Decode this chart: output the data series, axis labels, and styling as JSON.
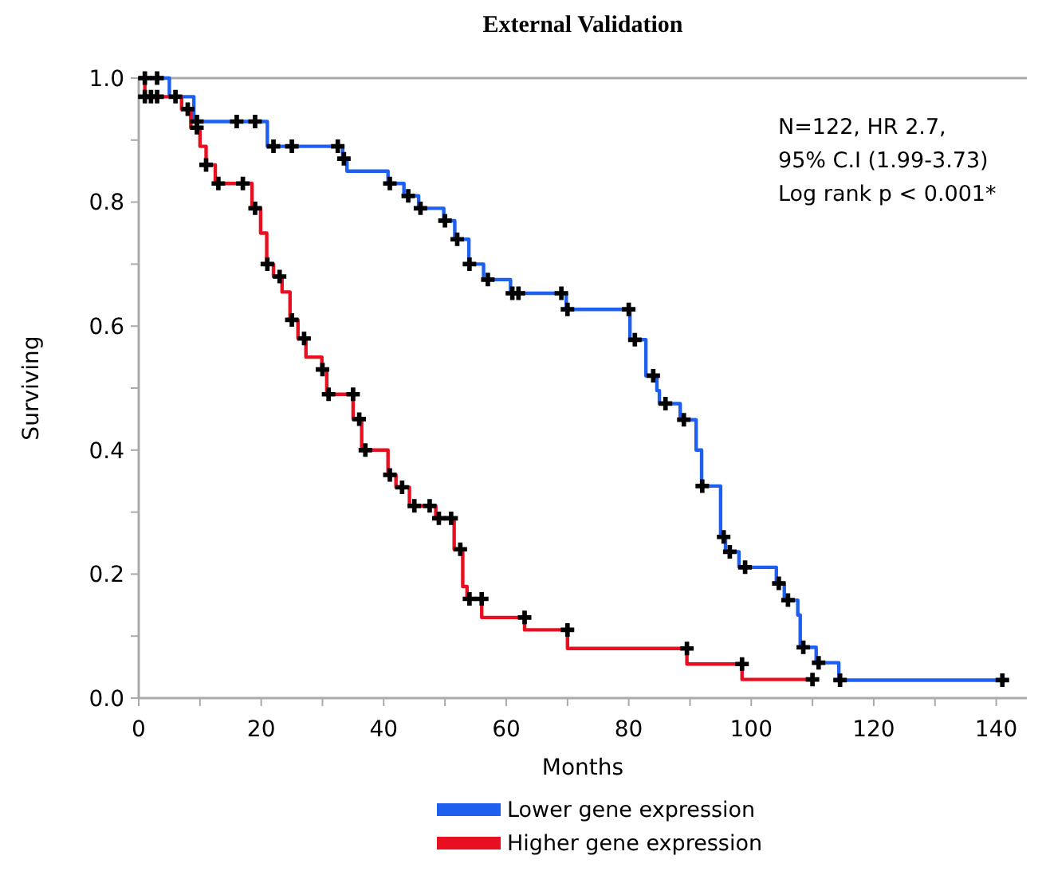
{
  "chart_data": {
    "type": "step",
    "title": "External Validation",
    "xlabel": "Months",
    "ylabel": "Surviving",
    "annotations": [
      "N=122, HR 2.7,",
      "95% C.I (1.99-3.73)",
      "Log rank p < 0.001*"
    ],
    "xlim": [
      0,
      145
    ],
    "ylim": [
      0,
      1
    ],
    "xticks": [
      0,
      {
        "value": 10,
        "label": null
      },
      20,
      {
        "value": 30,
        "label": null
      },
      40,
      {
        "value": 50,
        "label": null
      },
      60,
      {
        "value": 70,
        "label": null
      },
      80,
      {
        "value": 90,
        "label": null
      },
      100,
      {
        "value": 110,
        "label": null
      },
      120,
      {
        "value": 130,
        "label": null
      },
      140
    ],
    "yticks": [
      {
        "value": 0,
        "label": "0.0"
      },
      {
        "value": 0.1,
        "label": null
      },
      0.2,
      {
        "value": 0.3,
        "label": null
      },
      0.4,
      {
        "value": 0.5,
        "label": null
      },
      0.6,
      {
        "value": 0.7,
        "label": null
      },
      0.8,
      {
        "value": 0.9,
        "label": null
      },
      {
        "value": 1,
        "label": "1.0"
      }
    ],
    "grid": false,
    "legend": "bottom",
    "line_style": "solid",
    "series": [
      {
        "name": "Lower gene expression",
        "color": "#1f5ff0",
        "x": [
          0,
          5,
          9,
          21,
          33.3,
          34,
          40.7,
          43.3,
          45.7,
          49.8,
          51.6,
          53.9,
          56.3,
          60.7,
          69.8,
          80.2,
          82.8,
          84.6,
          85,
          88.4,
          91,
          91.9,
          95,
          95.8,
          98,
          104.1,
          105.4,
          107.6,
          108,
          110.6,
          114.3,
          141
        ],
        "values": [
          1,
          0.97,
          0.93,
          0.89,
          0.87,
          0.85,
          0.83,
          0.81,
          0.79,
          0.77,
          0.74,
          0.7,
          0.675,
          0.653,
          0.627,
          0.578,
          0.52,
          0.496,
          0.475,
          0.449,
          0.4,
          0.342,
          0.26,
          0.236,
          0.211,
          0.185,
          0.158,
          0.134,
          0.082,
          0.057,
          0.029,
          0.029
        ]
      },
      {
        "name": "Higher gene expression",
        "color": "#e81020",
        "x": [
          0,
          1,
          7,
          8.5,
          10,
          11,
          12.5,
          18.5,
          19.9,
          20.9,
          22,
          23.4,
          24.7,
          26,
          27.3,
          29.9,
          30.7,
          35,
          36.4,
          40.7,
          42,
          44.2,
          48.5,
          51.5,
          52.9,
          53.6,
          56,
          63,
          70,
          89.5,
          98.5,
          110
        ],
        "values": [
          1,
          0.97,
          0.95,
          0.92,
          0.89,
          0.86,
          0.83,
          0.79,
          0.75,
          0.7,
          0.68,
          0.655,
          0.61,
          0.58,
          0.55,
          0.53,
          0.49,
          0.45,
          0.4,
          0.36,
          0.34,
          0.31,
          0.29,
          0.24,
          0.18,
          0.16,
          0.13,
          0.11,
          0.08,
          0.055,
          0.03,
          0.03
        ]
      },
      {
        "type": "scatter",
        "color": "#000000",
        "marker": "cross",
        "x": [
          1,
          3,
          6,
          9.5,
          16,
          19,
          22,
          25,
          32.5,
          33.5,
          41,
          44,
          46,
          50,
          52,
          54,
          57,
          61,
          62,
          69,
          70,
          80,
          81,
          84,
          86,
          89,
          92,
          95.5,
          96.5,
          99,
          104.5,
          106,
          108.5,
          111,
          114.5,
          141
        ],
        "values": [
          1,
          1,
          0.97,
          0.93,
          0.93,
          0.93,
          0.89,
          0.89,
          0.89,
          0.87,
          0.83,
          0.81,
          0.79,
          0.77,
          0.74,
          0.7,
          0.675,
          0.653,
          0.653,
          0.653,
          0.627,
          0.627,
          0.578,
          0.52,
          0.475,
          0.449,
          0.342,
          0.26,
          0.236,
          0.211,
          0.185,
          0.158,
          0.082,
          0.057,
          0.029,
          0.029
        ]
      },
      {
        "type": "scatter",
        "color": "#000000",
        "marker": "cross",
        "x": [
          1,
          2,
          3,
          8,
          9.5,
          11,
          13,
          17,
          19,
          21,
          23,
          25,
          27,
          30,
          31,
          35,
          36,
          37,
          41,
          43,
          45,
          47.5,
          49,
          51,
          52.5,
          54,
          56,
          63,
          70,
          89.5,
          98.5,
          110
        ],
        "values": [
          0.97,
          0.97,
          0.97,
          0.95,
          0.92,
          0.86,
          0.83,
          0.83,
          0.79,
          0.7,
          0.68,
          0.61,
          0.58,
          0.53,
          0.49,
          0.49,
          0.45,
          0.4,
          0.36,
          0.34,
          0.31,
          0.31,
          0.29,
          0.29,
          0.24,
          0.16,
          0.16,
          0.13,
          0.11,
          0.08,
          0.055,
          0.03
        ]
      }
    ]
  }
}
